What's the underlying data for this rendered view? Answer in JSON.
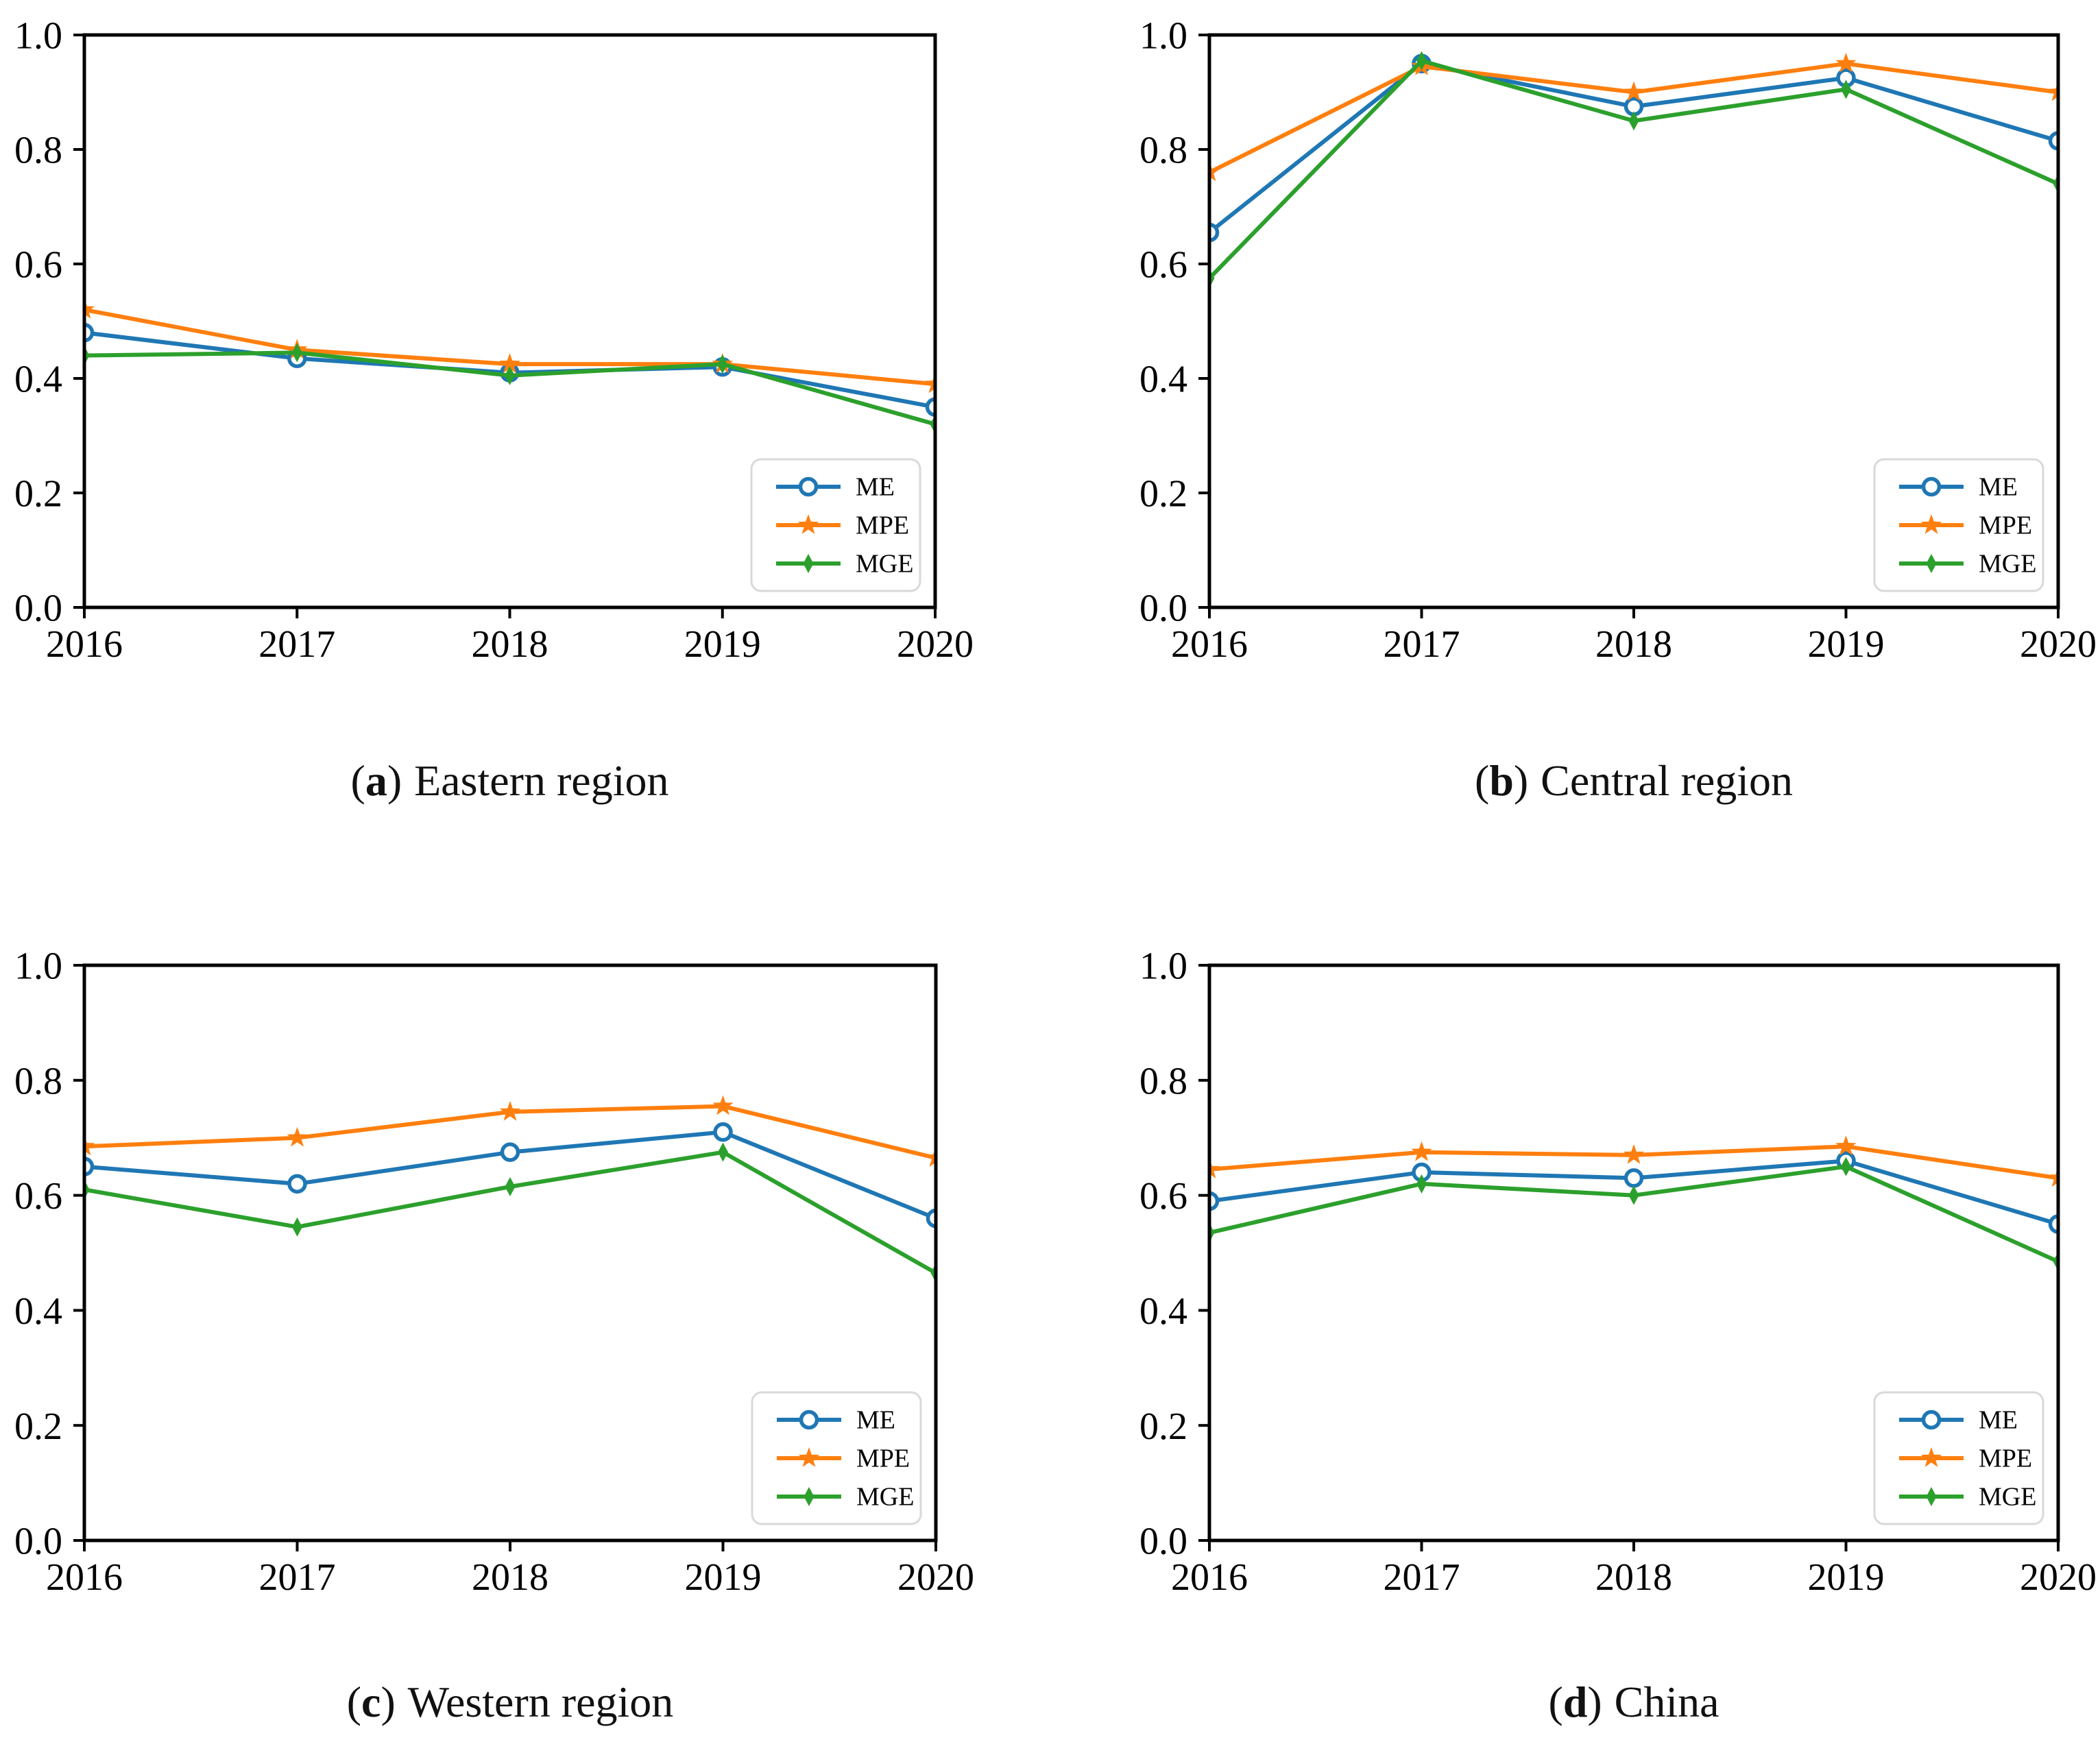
{
  "figure": {
    "background": "#ffffff",
    "axis_color": "#000000",
    "caption_punct": {
      "open": "(",
      "close": ")"
    },
    "legend": {
      "border_color": "#d9d9d9",
      "position": "lower right",
      "items": [
        {
          "label": "ME",
          "color": "#1f77b4",
          "marker": "open-circle"
        },
        {
          "label": "MPE",
          "color": "#ff7f0e",
          "marker": "star"
        },
        {
          "label": "MGE",
          "color": "#2ca02c",
          "marker": "thin-diamond"
        }
      ]
    },
    "y_tick_labels": [
      "0.0",
      "0.2",
      "0.4",
      "0.6",
      "0.8",
      "1.0"
    ],
    "x_tick_labels": [
      "2016",
      "2017",
      "2018",
      "2019",
      "2020"
    ]
  },
  "chart_data": [
    {
      "type": "line",
      "letter": "a",
      "region": "Eastern region",
      "x": [
        2016,
        2017,
        2018,
        2019,
        2020
      ],
      "ylim": [
        0.0,
        1.0
      ],
      "yticks": [
        0.0,
        0.2,
        0.4,
        0.6,
        0.8,
        1.0
      ],
      "grid": false,
      "legend_position": "lower right",
      "series": [
        {
          "name": "ME",
          "color": "#1f77b4",
          "marker": "open-circle",
          "values": [
            0.48,
            0.435,
            0.41,
            0.42,
            0.35
          ]
        },
        {
          "name": "MPE",
          "color": "#ff7f0e",
          "marker": "star",
          "values": [
            0.52,
            0.45,
            0.425,
            0.425,
            0.39
          ]
        },
        {
          "name": "MGE",
          "color": "#2ca02c",
          "marker": "thin-diamond",
          "values": [
            0.44,
            0.445,
            0.405,
            0.425,
            0.32
          ]
        }
      ]
    },
    {
      "type": "line",
      "letter": "b",
      "region": "Central region",
      "x": [
        2016,
        2017,
        2018,
        2019,
        2020
      ],
      "ylim": [
        0.0,
        1.0
      ],
      "yticks": [
        0.0,
        0.2,
        0.4,
        0.6,
        0.8,
        1.0
      ],
      "grid": false,
      "legend_position": "lower right",
      "series": [
        {
          "name": "ME",
          "color": "#1f77b4",
          "marker": "open-circle",
          "values": [
            0.655,
            0.95,
            0.875,
            0.925,
            0.815
          ]
        },
        {
          "name": "MPE",
          "color": "#ff7f0e",
          "marker": "star",
          "values": [
            0.76,
            0.945,
            0.9,
            0.95,
            0.9
          ]
        },
        {
          "name": "MGE",
          "color": "#2ca02c",
          "marker": "thin-diamond",
          "values": [
            0.575,
            0.955,
            0.85,
            0.905,
            0.74
          ]
        }
      ]
    },
    {
      "type": "line",
      "letter": "c",
      "region": "Western region",
      "x": [
        2016,
        2017,
        2018,
        2019,
        2020
      ],
      "ylim": [
        0.0,
        1.0
      ],
      "yticks": [
        0.0,
        0.2,
        0.4,
        0.6,
        0.8,
        1.0
      ],
      "grid": false,
      "legend_position": "lower right",
      "series": [
        {
          "name": "ME",
          "color": "#1f77b4",
          "marker": "open-circle",
          "values": [
            0.65,
            0.62,
            0.675,
            0.71,
            0.56
          ]
        },
        {
          "name": "MPE",
          "color": "#ff7f0e",
          "marker": "star",
          "values": [
            0.685,
            0.7,
            0.745,
            0.755,
            0.665
          ]
        },
        {
          "name": "MGE",
          "color": "#2ca02c",
          "marker": "thin-diamond",
          "values": [
            0.61,
            0.545,
            0.615,
            0.675,
            0.465
          ]
        }
      ]
    },
    {
      "type": "line",
      "letter": "d",
      "region": "China",
      "x": [
        2016,
        2017,
        2018,
        2019,
        2020
      ],
      "ylim": [
        0.0,
        1.0
      ],
      "yticks": [
        0.0,
        0.2,
        0.4,
        0.6,
        0.8,
        1.0
      ],
      "grid": false,
      "legend_position": "lower right",
      "series": [
        {
          "name": "ME",
          "color": "#1f77b4",
          "marker": "open-circle",
          "values": [
            0.59,
            0.64,
            0.63,
            0.66,
            0.55
          ]
        },
        {
          "name": "MPE",
          "color": "#ff7f0e",
          "marker": "star",
          "values": [
            0.645,
            0.675,
            0.67,
            0.685,
            0.63
          ]
        },
        {
          "name": "MGE",
          "color": "#2ca02c",
          "marker": "thin-diamond",
          "values": [
            0.535,
            0.62,
            0.6,
            0.65,
            0.485
          ]
        }
      ]
    }
  ]
}
